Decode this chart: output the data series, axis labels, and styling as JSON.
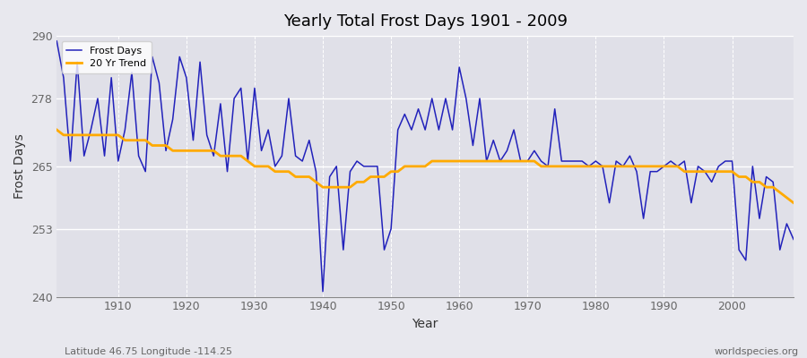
{
  "title": "Yearly Total Frost Days 1901 - 2009",
  "xlabel": "Year",
  "ylabel": "Frost Days",
  "xlim": [
    1901,
    2009
  ],
  "ylim": [
    240,
    290
  ],
  "yticks": [
    240,
    253,
    265,
    278,
    290
  ],
  "xticks": [
    1910,
    1920,
    1930,
    1940,
    1950,
    1960,
    1970,
    1980,
    1990,
    2000
  ],
  "line_color": "#2222bb",
  "trend_color": "#ffaa00",
  "bg_color": "#e8e8ee",
  "plot_bg": "#e0e0e8",
  "grid_color": "#ffffff",
  "subtitle": "Latitude 46.75 Longitude -114.25",
  "watermark": "worldspecies.org",
  "years": [
    1901,
    1902,
    1903,
    1904,
    1905,
    1906,
    1907,
    1908,
    1909,
    1910,
    1911,
    1912,
    1913,
    1914,
    1915,
    1916,
    1917,
    1918,
    1919,
    1920,
    1921,
    1922,
    1923,
    1924,
    1925,
    1926,
    1927,
    1928,
    1929,
    1930,
    1931,
    1932,
    1933,
    1934,
    1935,
    1936,
    1937,
    1938,
    1939,
    1940,
    1941,
    1942,
    1943,
    1944,
    1945,
    1946,
    1947,
    1948,
    1949,
    1950,
    1951,
    1952,
    1953,
    1954,
    1955,
    1956,
    1957,
    1958,
    1959,
    1960,
    1961,
    1962,
    1963,
    1964,
    1965,
    1966,
    1967,
    1968,
    1969,
    1970,
    1971,
    1972,
    1973,
    1974,
    1975,
    1976,
    1977,
    1978,
    1979,
    1980,
    1981,
    1982,
    1983,
    1984,
    1985,
    1986,
    1987,
    1988,
    1989,
    1990,
    1991,
    1992,
    1993,
    1994,
    1995,
    1996,
    1997,
    1998,
    1999,
    2000,
    2001,
    2002,
    2003,
    2004,
    2005,
    2006,
    2007,
    2008,
    2009
  ],
  "frost_days": [
    289,
    282,
    266,
    285,
    267,
    272,
    278,
    267,
    282,
    266,
    272,
    283,
    267,
    264,
    286,
    281,
    268,
    274,
    286,
    282,
    270,
    285,
    271,
    267,
    277,
    264,
    278,
    280,
    266,
    280,
    268,
    272,
    265,
    267,
    278,
    267,
    266,
    270,
    264,
    241,
    263,
    265,
    249,
    264,
    266,
    265,
    265,
    265,
    249,
    253,
    272,
    275,
    272,
    276,
    272,
    278,
    272,
    278,
    272,
    284,
    278,
    269,
    278,
    266,
    270,
    266,
    268,
    272,
    266,
    266,
    268,
    266,
    265,
    276,
    266,
    266,
    266,
    266,
    265,
    266,
    265,
    258,
    266,
    265,
    267,
    264,
    255,
    264,
    264,
    265,
    266,
    265,
    266,
    258,
    265,
    264,
    262,
    265,
    266,
    266,
    249,
    247,
    265,
    255,
    263,
    262,
    249,
    254,
    251
  ],
  "trend_years": [
    1901,
    1902,
    1903,
    1904,
    1905,
    1906,
    1907,
    1908,
    1909,
    1910,
    1911,
    1912,
    1913,
    1914,
    1915,
    1916,
    1917,
    1918,
    1919,
    1920,
    1921,
    1922,
    1923,
    1924,
    1925,
    1926,
    1927,
    1928,
    1929,
    1930,
    1931,
    1932,
    1933,
    1934,
    1935,
    1936,
    1937,
    1938,
    1939,
    1940,
    1941,
    1942,
    1943,
    1944,
    1945,
    1946,
    1947,
    1948,
    1949,
    1950,
    1951,
    1952,
    1953,
    1954,
    1955,
    1956,
    1957,
    1958,
    1959,
    1960,
    1961,
    1962,
    1963,
    1964,
    1965,
    1966,
    1967,
    1968,
    1969,
    1970,
    1971,
    1972,
    1973,
    1974,
    1975,
    1976,
    1977,
    1978,
    1979,
    1980,
    1981,
    1982,
    1983,
    1984,
    1985,
    1986,
    1987,
    1988,
    1989,
    1990,
    1991,
    1992,
    1993,
    1994,
    1995,
    1996,
    1997,
    1998,
    1999,
    2000,
    2001,
    2002,
    2003,
    2004,
    2005,
    2006,
    2007,
    2008,
    2009
  ],
  "trend_values": [
    272,
    271,
    271,
    271,
    271,
    271,
    271,
    271,
    271,
    271,
    270,
    270,
    270,
    270,
    269,
    269,
    269,
    268,
    268,
    268,
    268,
    268,
    268,
    268,
    267,
    267,
    267,
    267,
    266,
    265,
    265,
    265,
    264,
    264,
    264,
    263,
    263,
    263,
    262,
    261,
    261,
    261,
    261,
    261,
    262,
    262,
    263,
    263,
    263,
    264,
    264,
    265,
    265,
    265,
    265,
    266,
    266,
    266,
    266,
    266,
    266,
    266,
    266,
    266,
    266,
    266,
    266,
    266,
    266,
    266,
    266,
    265,
    265,
    265,
    265,
    265,
    265,
    265,
    265,
    265,
    265,
    265,
    265,
    265,
    265,
    265,
    265,
    265,
    265,
    265,
    265,
    265,
    264,
    264,
    264,
    264,
    264,
    264,
    264,
    264,
    263,
    263,
    262,
    262,
    261,
    261,
    260,
    259,
    258
  ]
}
